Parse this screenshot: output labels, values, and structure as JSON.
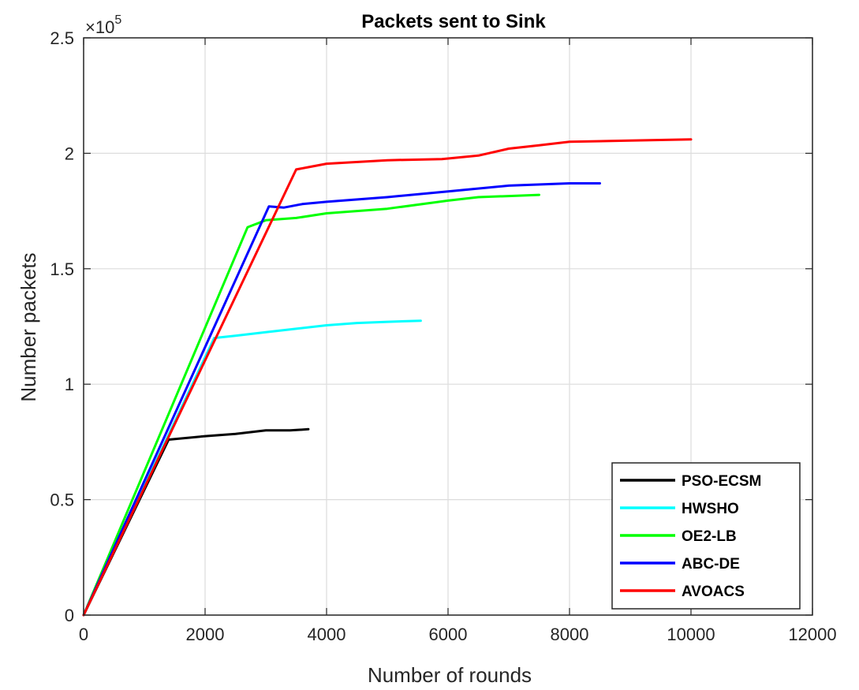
{
  "chart_data": {
    "type": "line",
    "title": "Packets sent to Sink",
    "xlabel": "Number of rounds",
    "ylabel": "Number packets",
    "y_multiplier_label": "×10",
    "y_multiplier_exponent": "5",
    "xlim": [
      0,
      12000
    ],
    "ylim": [
      0,
      2.5
    ],
    "xticks": [
      0,
      2000,
      4000,
      6000,
      8000,
      10000,
      12000
    ],
    "xtick_labels": [
      "0",
      "2000",
      "4000",
      "6000",
      "8000",
      "10000",
      "12000"
    ],
    "yticks": [
      0,
      0.5,
      1,
      1.5,
      2,
      2.5
    ],
    "ytick_labels": [
      "0",
      "0.5",
      "1",
      "1.5",
      "2",
      "2.5"
    ],
    "grid": true,
    "legend_position": "bottom-right",
    "series": [
      {
        "name": "PSO-ECSM",
        "color": "#000000",
        "points": [
          [
            0,
            0
          ],
          [
            1400,
            0.76
          ],
          [
            2000,
            0.775
          ],
          [
            2500,
            0.785
          ],
          [
            3000,
            0.8
          ],
          [
            3400,
            0.8
          ],
          [
            3700,
            0.805
          ]
        ]
      },
      {
        "name": "HWSHO",
        "color": "#00ffff",
        "points": [
          [
            0,
            0
          ],
          [
            2150,
            1.2
          ],
          [
            2500,
            1.21
          ],
          [
            3000,
            1.225
          ],
          [
            3500,
            1.24
          ],
          [
            4000,
            1.255
          ],
          [
            4500,
            1.265
          ],
          [
            5000,
            1.27
          ],
          [
            5550,
            1.275
          ]
        ]
      },
      {
        "name": "OE2-LB",
        "color": "#00ff00",
        "points": [
          [
            0,
            0
          ],
          [
            2700,
            1.68
          ],
          [
            3000,
            1.71
          ],
          [
            3500,
            1.72
          ],
          [
            4000,
            1.74
          ],
          [
            5000,
            1.76
          ],
          [
            6000,
            1.795
          ],
          [
            6500,
            1.81
          ],
          [
            7000,
            1.815
          ],
          [
            7500,
            1.82
          ]
        ]
      },
      {
        "name": "ABC-DE",
        "color": "#0000ff",
        "points": [
          [
            0,
            0
          ],
          [
            3050,
            1.77
          ],
          [
            3300,
            1.765
          ],
          [
            3600,
            1.78
          ],
          [
            4000,
            1.79
          ],
          [
            5000,
            1.81
          ],
          [
            6000,
            1.835
          ],
          [
            7000,
            1.86
          ],
          [
            8000,
            1.87
          ],
          [
            8500,
            1.87
          ]
        ]
      },
      {
        "name": "AVOACS",
        "color": "#ff0000",
        "points": [
          [
            0,
            0
          ],
          [
            3500,
            1.93
          ],
          [
            3700,
            1.94
          ],
          [
            4000,
            1.955
          ],
          [
            5000,
            1.97
          ],
          [
            5900,
            1.975
          ],
          [
            6500,
            1.99
          ],
          [
            7000,
            2.02
          ],
          [
            7500,
            2.035
          ],
          [
            8000,
            2.05
          ],
          [
            9000,
            2.055
          ],
          [
            10000,
            2.06
          ]
        ]
      }
    ]
  }
}
